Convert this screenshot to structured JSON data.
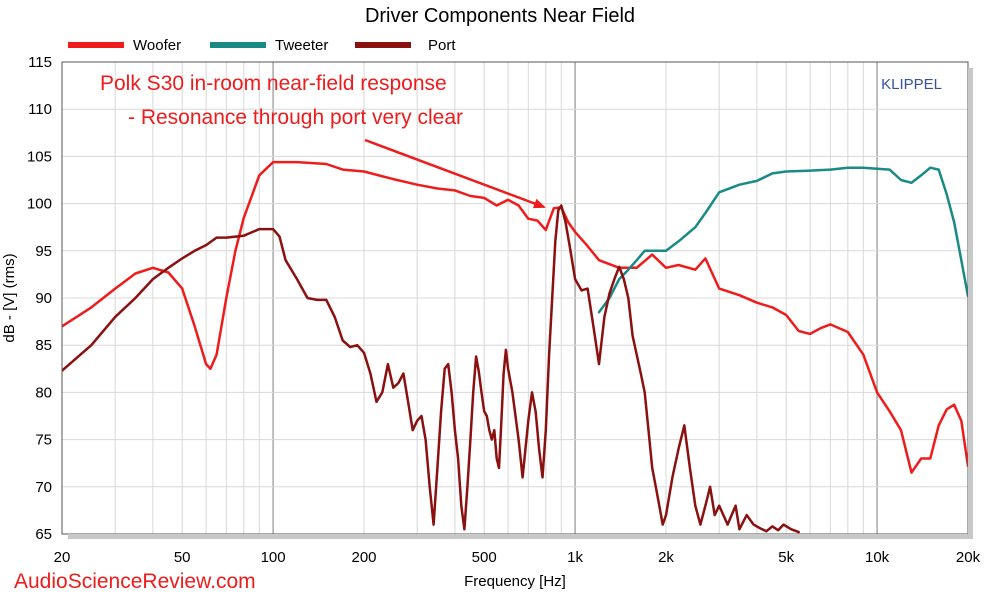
{
  "chart_data": {
    "type": "line",
    "title": "Driver Components Near Field",
    "xlabel": "Frequency [Hz]",
    "ylabel": "dB - [V] (rms)",
    "x_scale": "log",
    "xlim": [
      20,
      20000
    ],
    "ylim": [
      65,
      115
    ],
    "x_ticks": [
      {
        "value": 20,
        "label": "20"
      },
      {
        "value": 50,
        "label": "50"
      },
      {
        "value": 100,
        "label": "100"
      },
      {
        "value": 200,
        "label": "200"
      },
      {
        "value": 500,
        "label": "500"
      },
      {
        "value": 1000,
        "label": "1k"
      },
      {
        "value": 2000,
        "label": "2k"
      },
      {
        "value": 5000,
        "label": "5k"
      },
      {
        "value": 10000,
        "label": "10k"
      },
      {
        "value": 20000,
        "label": "20k"
      }
    ],
    "y_ticks": [
      65,
      70,
      75,
      80,
      85,
      90,
      95,
      100,
      105,
      110,
      115
    ],
    "grid": true,
    "legend_position": "top-left",
    "series": [
      {
        "name": "Woofer",
        "color": "#ee1c1c",
        "points": [
          [
            20,
            87
          ],
          [
            25,
            89
          ],
          [
            30,
            91
          ],
          [
            35,
            92.6
          ],
          [
            40,
            93.2
          ],
          [
            45,
            92.7
          ],
          [
            50,
            91
          ],
          [
            55,
            87
          ],
          [
            60,
            83
          ],
          [
            62,
            82.5
          ],
          [
            65,
            84
          ],
          [
            70,
            90
          ],
          [
            75,
            95
          ],
          [
            80,
            98.5
          ],
          [
            90,
            103
          ],
          [
            100,
            104.4
          ],
          [
            120,
            104.4
          ],
          [
            150,
            104.2
          ],
          [
            170,
            103.6
          ],
          [
            200,
            103.4
          ],
          [
            250,
            102.6
          ],
          [
            300,
            102
          ],
          [
            350,
            101.6
          ],
          [
            400,
            101.4
          ],
          [
            450,
            100.8
          ],
          [
            500,
            100.6
          ],
          [
            550,
            99.8
          ],
          [
            600,
            100.4
          ],
          [
            650,
            99.8
          ],
          [
            700,
            98.4
          ],
          [
            750,
            98.2
          ],
          [
            800,
            97.2
          ],
          [
            850,
            99.5
          ],
          [
            900,
            99.6
          ],
          [
            950,
            98
          ],
          [
            1000,
            97
          ],
          [
            1100,
            95.5
          ],
          [
            1200,
            94
          ],
          [
            1400,
            93.2
          ],
          [
            1600,
            93.2
          ],
          [
            1800,
            94.6
          ],
          [
            2000,
            93.2
          ],
          [
            2200,
            93.5
          ],
          [
            2500,
            93
          ],
          [
            2700,
            94.2
          ],
          [
            3000,
            91
          ],
          [
            3500,
            90.3
          ],
          [
            4000,
            89.5
          ],
          [
            4500,
            89
          ],
          [
            5000,
            88.2
          ],
          [
            5500,
            86.5
          ],
          [
            6000,
            86.2
          ],
          [
            6500,
            86.8
          ],
          [
            7000,
            87.2
          ],
          [
            8000,
            86.4
          ],
          [
            9000,
            84
          ],
          [
            10000,
            80
          ],
          [
            11000,
            78
          ],
          [
            12000,
            76
          ],
          [
            13000,
            71.5
          ],
          [
            14000,
            73
          ],
          [
            15000,
            73
          ],
          [
            16000,
            76.5
          ],
          [
            17000,
            78.2
          ],
          [
            18000,
            78.7
          ],
          [
            19000,
            77
          ],
          [
            20000,
            72.2
          ]
        ]
      },
      {
        "name": "Tweeter",
        "color": "#1a8a86",
        "points": [
          [
            1200,
            88.5
          ],
          [
            1300,
            90
          ],
          [
            1400,
            92
          ],
          [
            1500,
            93
          ],
          [
            1600,
            94
          ],
          [
            1700,
            95
          ],
          [
            1800,
            95
          ],
          [
            2000,
            95
          ],
          [
            2200,
            96
          ],
          [
            2500,
            97.5
          ],
          [
            2700,
            99
          ],
          [
            3000,
            101.2
          ],
          [
            3500,
            102
          ],
          [
            4000,
            102.4
          ],
          [
            4500,
            103.2
          ],
          [
            5000,
            103.4
          ],
          [
            6000,
            103.5
          ],
          [
            7000,
            103.6
          ],
          [
            8000,
            103.8
          ],
          [
            9000,
            103.8
          ],
          [
            10000,
            103.7
          ],
          [
            11000,
            103.6
          ],
          [
            12000,
            102.5
          ],
          [
            13000,
            102.2
          ],
          [
            14000,
            103
          ],
          [
            15000,
            103.8
          ],
          [
            16000,
            103.6
          ],
          [
            17000,
            101
          ],
          [
            18000,
            98
          ],
          [
            19000,
            94
          ],
          [
            20000,
            90.2
          ]
        ]
      },
      {
        "name": "Port",
        "color": "#8b1010",
        "points": [
          [
            20,
            82.3
          ],
          [
            25,
            85
          ],
          [
            30,
            88
          ],
          [
            35,
            90
          ],
          [
            40,
            92
          ],
          [
            45,
            93.2
          ],
          [
            50,
            94.2
          ],
          [
            55,
            95
          ],
          [
            60,
            95.6
          ],
          [
            65,
            96.4
          ],
          [
            70,
            96.4
          ],
          [
            80,
            96.6
          ],
          [
            90,
            97.3
          ],
          [
            100,
            97.3
          ],
          [
            105,
            96.5
          ],
          [
            110,
            94
          ],
          [
            120,
            92
          ],
          [
            130,
            90
          ],
          [
            140,
            89.8
          ],
          [
            150,
            89.8
          ],
          [
            160,
            88
          ],
          [
            170,
            85.5
          ],
          [
            180,
            84.8
          ],
          [
            190,
            85
          ],
          [
            200,
            84.2
          ],
          [
            210,
            82
          ],
          [
            220,
            79
          ],
          [
            230,
            80
          ],
          [
            240,
            83
          ],
          [
            250,
            80.5
          ],
          [
            260,
            81
          ],
          [
            270,
            82
          ],
          [
            280,
            79
          ],
          [
            290,
            76
          ],
          [
            300,
            77
          ],
          [
            310,
            77.5
          ],
          [
            320,
            75
          ],
          [
            330,
            70
          ],
          [
            340,
            66
          ],
          [
            350,
            72
          ],
          [
            360,
            78
          ],
          [
            370,
            82.5
          ],
          [
            380,
            83
          ],
          [
            390,
            80
          ],
          [
            400,
            76
          ],
          [
            410,
            73
          ],
          [
            420,
            68
          ],
          [
            430,
            65.5
          ],
          [
            440,
            70
          ],
          [
            450,
            75
          ],
          [
            460,
            80
          ],
          [
            470,
            83.8
          ],
          [
            480,
            82.2
          ],
          [
            490,
            80
          ],
          [
            500,
            78
          ],
          [
            510,
            77.5
          ],
          [
            520,
            76
          ],
          [
            530,
            75
          ],
          [
            540,
            76
          ],
          [
            550,
            73
          ],
          [
            560,
            72
          ],
          [
            570,
            77
          ],
          [
            580,
            82
          ],
          [
            590,
            84.5
          ],
          [
            600,
            82.5
          ],
          [
            620,
            80
          ],
          [
            650,
            75
          ],
          [
            670,
            71
          ],
          [
            700,
            77
          ],
          [
            720,
            80
          ],
          [
            740,
            78
          ],
          [
            760,
            74
          ],
          [
            780,
            71
          ],
          [
            800,
            76
          ],
          [
            820,
            84
          ],
          [
            840,
            90
          ],
          [
            860,
            96
          ],
          [
            880,
            99.3
          ],
          [
            900,
            99.8
          ],
          [
            930,
            98
          ],
          [
            960,
            95.5
          ],
          [
            1000,
            92
          ],
          [
            1050,
            90.8
          ],
          [
            1100,
            91
          ],
          [
            1150,
            87
          ],
          [
            1200,
            83
          ],
          [
            1250,
            88
          ],
          [
            1300,
            90.5
          ],
          [
            1350,
            92
          ],
          [
            1400,
            93.3
          ],
          [
            1450,
            92
          ],
          [
            1500,
            90
          ],
          [
            1550,
            86
          ],
          [
            1600,
            84
          ],
          [
            1650,
            82
          ],
          [
            1700,
            80
          ],
          [
            1750,
            76
          ],
          [
            1800,
            72
          ],
          [
            1850,
            70
          ],
          [
            1900,
            68
          ],
          [
            1950,
            66
          ],
          [
            2000,
            67
          ],
          [
            2100,
            71
          ],
          [
            2200,
            74
          ],
          [
            2300,
            76.5
          ],
          [
            2400,
            72
          ],
          [
            2500,
            68
          ],
          [
            2600,
            66
          ],
          [
            2700,
            68
          ],
          [
            2800,
            70
          ],
          [
            2900,
            67
          ],
          [
            3000,
            68
          ],
          [
            3200,
            66
          ],
          [
            3400,
            68
          ],
          [
            3500,
            65.5
          ],
          [
            3700,
            67
          ],
          [
            3900,
            66
          ],
          [
            4100,
            65.6
          ],
          [
            4300,
            65.3
          ],
          [
            4500,
            65.8
          ],
          [
            4700,
            65.4
          ],
          [
            4900,
            66
          ],
          [
            5200,
            65.5
          ],
          [
            5500,
            65.2
          ]
        ]
      }
    ],
    "annotations": [
      {
        "text": "Polk S30 in-room near-field response",
        "color": "#ee1c1c"
      },
      {
        "text": "- Resonance through port very clear",
        "color": "#ee1c1c"
      }
    ],
    "brand_label": {
      "text": "KLIPPEL",
      "color": "#3a50a0"
    },
    "watermark": {
      "text": "AudioScienceReview.com",
      "color": "#ee1c1c"
    }
  }
}
